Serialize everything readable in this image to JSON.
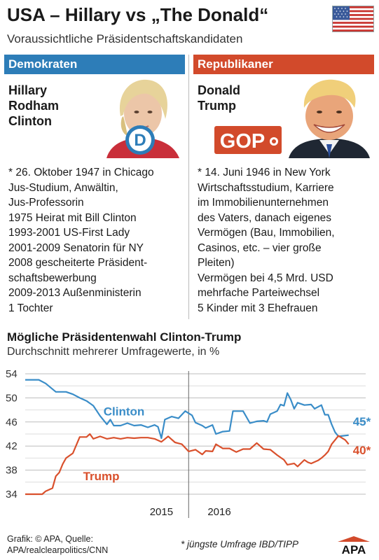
{
  "header": {
    "title": "USA – Hillary vs „The Donald“",
    "subtitle": "Voraussichtliche Präsidentschaftskandidaten"
  },
  "democrats": {
    "heading": "Demokraten",
    "name_lines": [
      "Hillary",
      "Rodham",
      "Clinton"
    ],
    "logo_letter": "D",
    "bio": [
      "* 26. Oktober 1947 in Chicago",
      "Jus-Studium, Anwältin,",
      "Jus-Professorin",
      "1975 Heirat mit Bill Clinton",
      "1993-2001 US-First Lady",
      "2001-2009 Senatorin für NY",
      "2008 gescheiterte Präsident-",
      "schaftsbewerbung",
      "2009-2013 Außenministerin",
      "1 Tochter"
    ]
  },
  "republicans": {
    "heading": "Republikaner",
    "name_lines": [
      "Donald",
      "Trump"
    ],
    "logo_text": "GOP",
    "bio": [
      "* 14. Juni 1946 in New York",
      "Wirtschaftsstudium, Karriere",
      "im Immobilienunternehmen",
      "des Vaters, danach eigenes",
      "Vermögen (Bau, Immobilien,",
      "Casinos, etc. – vier große",
      "Pleiten)",
      "Vermögen bei 4,5 Mrd. USD",
      "mehrfache Parteiwechsel",
      "5 Kinder mit 3 Ehefrauen"
    ]
  },
  "colors": {
    "dem": "#2d7db8",
    "rep": "#d24a2b",
    "clinton_line": "#3a8dc8",
    "trump_line": "#d9502c"
  },
  "chart_data": {
    "type": "line",
    "title": "Mögliche Präsidentenwahl Clinton-Trump",
    "subtitle": "Durchschnitt mehrerer Umfragewerte, in %",
    "ylim": [
      34,
      54
    ],
    "yticks": [
      "54",
      "50",
      "46",
      "42",
      "38",
      "34"
    ],
    "xlim": [
      0,
      100
    ],
    "x_tick_labels": [
      {
        "label": "2015",
        "x": 40
      },
      {
        "label": "2016",
        "x": 57
      }
    ],
    "year_boundary_x": 48,
    "grid": true,
    "series": [
      {
        "name": "Clinton",
        "end_label": "45*",
        "points": [
          [
            0,
            53
          ],
          [
            4,
            53
          ],
          [
            6,
            52.4
          ],
          [
            9,
            51
          ],
          [
            12,
            51
          ],
          [
            14,
            50.6
          ],
          [
            16,
            50
          ],
          [
            18,
            49.5
          ],
          [
            20,
            48.7
          ],
          [
            22,
            47
          ],
          [
            24,
            45.6
          ],
          [
            25,
            46.4
          ],
          [
            26,
            45.4
          ],
          [
            28,
            45.4
          ],
          [
            30,
            45.8
          ],
          [
            32,
            45.4
          ],
          [
            34,
            45.5
          ],
          [
            36,
            45.1
          ],
          [
            38,
            45.5
          ],
          [
            39,
            45.2
          ],
          [
            40,
            43.3
          ],
          [
            41,
            46.4
          ],
          [
            43,
            46.9
          ],
          [
            45,
            46.6
          ],
          [
            47,
            47.8
          ],
          [
            49,
            47.1
          ],
          [
            50,
            45.9
          ],
          [
            52,
            45.4
          ],
          [
            53,
            45
          ],
          [
            55,
            45.5
          ],
          [
            56,
            44
          ],
          [
            58,
            44.4
          ],
          [
            60,
            44.5
          ],
          [
            61,
            47.8
          ],
          [
            64,
            47.8
          ],
          [
            66,
            45.8
          ],
          [
            68,
            46.1
          ],
          [
            70,
            46.2
          ],
          [
            71,
            46
          ],
          [
            72,
            47.3
          ],
          [
            74,
            47.8
          ],
          [
            75,
            48.9
          ],
          [
            76,
            48.7
          ],
          [
            77,
            50.8
          ],
          [
            78,
            49.7
          ],
          [
            79,
            48.2
          ],
          [
            80,
            49.2
          ],
          [
            82,
            48.8
          ],
          [
            84,
            48.9
          ],
          [
            85,
            48.2
          ],
          [
            87,
            48.8
          ],
          [
            88,
            47.2
          ],
          [
            89,
            47.2
          ],
          [
            90,
            45.6
          ],
          [
            91,
            44.3
          ],
          [
            92,
            43.6
          ],
          [
            95,
            43.8
          ]
        ]
      },
      {
        "name": "Trump",
        "end_label": "40*",
        "points": [
          [
            0,
            34
          ],
          [
            5,
            34
          ],
          [
            6,
            34.5
          ],
          [
            8,
            35
          ],
          [
            9,
            37
          ],
          [
            10,
            37.6
          ],
          [
            11,
            39
          ],
          [
            12,
            40
          ],
          [
            14,
            40.8
          ],
          [
            16,
            43.5
          ],
          [
            18,
            43.5
          ],
          [
            19,
            44
          ],
          [
            20,
            43.2
          ],
          [
            22,
            43.6
          ],
          [
            24,
            43.2
          ],
          [
            26,
            43.4
          ],
          [
            28,
            43.2
          ],
          [
            30,
            43.4
          ],
          [
            32,
            43.3
          ],
          [
            34,
            43.4
          ],
          [
            36,
            43.4
          ],
          [
            38,
            43.2
          ],
          [
            40,
            42.7
          ],
          [
            42,
            43.6
          ],
          [
            44,
            42.6
          ],
          [
            46,
            42.3
          ],
          [
            48,
            41.1
          ],
          [
            50,
            41.4
          ],
          [
            52,
            40.6
          ],
          [
            53,
            41.2
          ],
          [
            55,
            41.1
          ],
          [
            56,
            42.3
          ],
          [
            58,
            41.6
          ],
          [
            60,
            41.6
          ],
          [
            62,
            41
          ],
          [
            64,
            41.5
          ],
          [
            66,
            41.5
          ],
          [
            68,
            42.5
          ],
          [
            70,
            41.5
          ],
          [
            72,
            41.4
          ],
          [
            74,
            40.5
          ],
          [
            76,
            39.7
          ],
          [
            77,
            38.9
          ],
          [
            79,
            39.1
          ],
          [
            80,
            38.6
          ],
          [
            82,
            39.7
          ],
          [
            83,
            39.3
          ],
          [
            84,
            39.1
          ],
          [
            86,
            39.6
          ],
          [
            87,
            40
          ],
          [
            88,
            40.5
          ],
          [
            89,
            41.1
          ],
          [
            90,
            42.3
          ],
          [
            91,
            43
          ],
          [
            92,
            43.7
          ],
          [
            94,
            43
          ],
          [
            95,
            42.3
          ]
        ]
      }
    ]
  },
  "source": {
    "line1": "Grafik: © APA, Quelle:",
    "line2": "APA/realclearpolitics/CNN"
  },
  "footnote": "* jüngste Umfrage IBD/TIPP",
  "brand": "APA"
}
